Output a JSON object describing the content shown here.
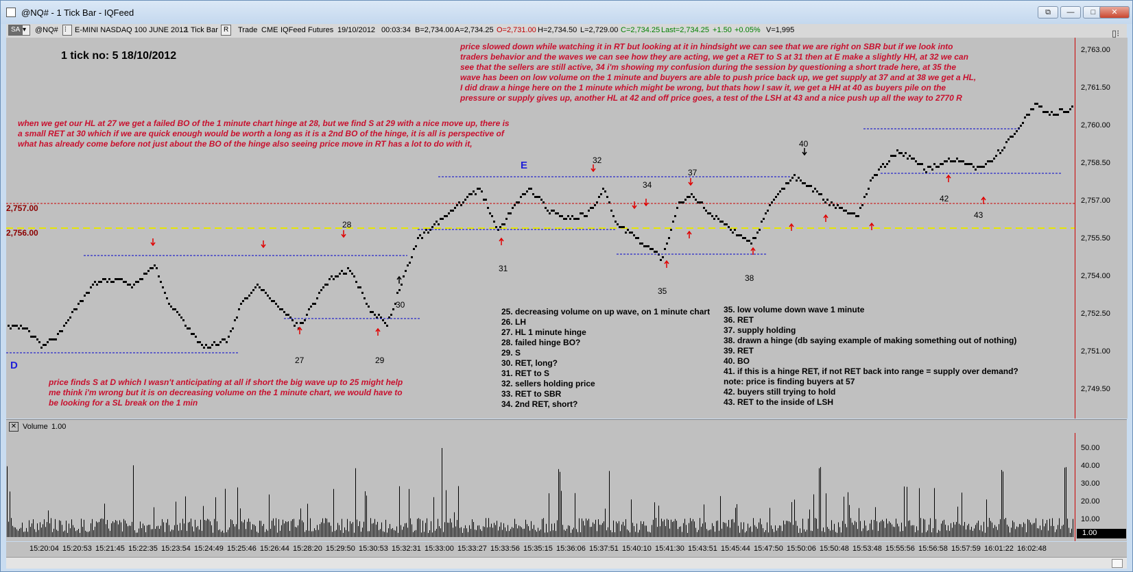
{
  "window": {
    "title": "@NQ# - 1 Tick Bar - IQFeed",
    "buttons": {
      "restore": "⧉",
      "minimize": "—",
      "maximize": "□",
      "close": "✕"
    }
  },
  "toolbar": {
    "sa": "SA",
    "symbol": "@NQ#",
    "instrument": "E-MINI NASDAQ 100 JUNE 2012",
    "interval": "1 Tick Bar",
    "r": "R",
    "trade": "Trade",
    "exchange": "CME",
    "feed": "IQFeed",
    "type": "Futures",
    "date": "19/10/2012",
    "time": "00:03:34",
    "bid": "B=2,734.00",
    "ask": "A=2,734.25",
    "open": "O=2,731.00",
    "high": "H=2,734.50",
    "low": "L=2,729.00",
    "close": "C=2,734.25",
    "last": "Last=2,734.25",
    "change": "+1.50",
    "change_pct": "+0.05%",
    "volume": "V=1,995",
    "colors": {
      "open": "#c00000",
      "positive": "#008000"
    }
  },
  "chart": {
    "heading": "1 tick no: 5 18/10/2012",
    "y_ticks": [
      "2,763.00",
      "2,761.50",
      "2,760.00",
      "2,758.50",
      "2,757.00",
      "2,755.50",
      "2,754.00",
      "2,752.50",
      "2,751.00",
      "2,749.50"
    ],
    "price_tags": [
      "2,757.00",
      "2,756.00"
    ],
    "point_labels": {
      "d": "D",
      "e": "E"
    },
    "wave_labels": [
      "27",
      "28",
      "29",
      "30",
      "31",
      "32",
      "34",
      "35",
      "37",
      "38",
      "40",
      "42",
      "43"
    ],
    "note_top": "price slowed down while watching it in RT but looking at it in hindsight we can see that we are right on SBR but if we look into\ntraders behavior and the waves we can see how they are acting, we get a RET to S at 31 then at E make a slightly HH, at 32 we can\nsee that the sellers are still active, 34 i'm showing my confusion during the session by questioning a short trade here, at 35 the\nwave has been on low volume on the 1 minute and buyers are able to push price back up, we get supply at 37 and at 38 we get a HL,\nI did draw a hinge here on the 1 minute which might be wrong, but thats how I saw it, we get a HH at 40 as buyers pile on the\npressure or supply gives up, another HL at 42 and off price goes, a test of the LSH at 43 and a nice push up all the way to 2770 R",
    "note_left": "when we get our HL at 27 we get a failed BO of the 1 minute chart hinge at 28, but we find S at 29 with a nice move up, there is\na small RET at 30 which if we are quick enough would be worth a long as it is a 2nd BO of the hinge, it is all is perspective of\nwhat has already come before not just about the BO of the hinge also seeing price move in RT has a lot to do with it,",
    "note_bottom": "price finds S at D which I wasn't anticipating at all if short the big wave up to 25 might help\nme think i'm wrong but it is on decreasing volume on the 1 minute chart, we would have to\nbe looking for a SL break on the 1 min",
    "legend_1": "25. decreasing volume on up wave, on 1 minute chart\n26. LH\n27. HL 1 minute hinge\n28. failed hinge BO?\n29. S\n30. RET, long?\n31. RET to S\n32. sellers holding price\n33. RET to SBR\n34. 2nd RET, short?",
    "legend_2": "35. low volume down wave 1 minute\n36. RET\n37. supply holding\n38. drawn a hinge (db saying example of making something out of nothing)\n39. RET\n40. BO\n41. if this is a hinge RET, if not RET back into range = supply over demand?\nnote: price is finding buyers at 57\n42. buyers still trying to hold\n43. RET to the inside of LSH"
  },
  "volume": {
    "label": "Volume",
    "value": "1.00",
    "y_ticks": [
      "50.00",
      "40.00",
      "30.00",
      "20.00",
      "10.00"
    ],
    "current": "1.00"
  },
  "time_ticks": [
    "15:20:04",
    "15:20:53",
    "15:21:45",
    "15:22:35",
    "15:23:54",
    "15:24:49",
    "15:25:46",
    "15:26:44",
    "15:28:20",
    "15:29:50",
    "15:30:53",
    "15:32:31",
    "15:33:00",
    "15:33:27",
    "15:33:56",
    "15:35:15",
    "15:36:06",
    "15:37:51",
    "15:40:10",
    "15:41:30",
    "15:43:51",
    "15:45:44",
    "15:47:50",
    "15:50:06",
    "15:50:48",
    "15:53:48",
    "15:55:56",
    "15:56:58",
    "15:57:59",
    "16:01:22",
    "16:02:48"
  ],
  "colors": {
    "note": "#c8102e",
    "point_label": "#1f1fd8",
    "hinge_line": "#0000cc",
    "red_line": "#cc0000",
    "yellow_line": "#e6e600"
  }
}
